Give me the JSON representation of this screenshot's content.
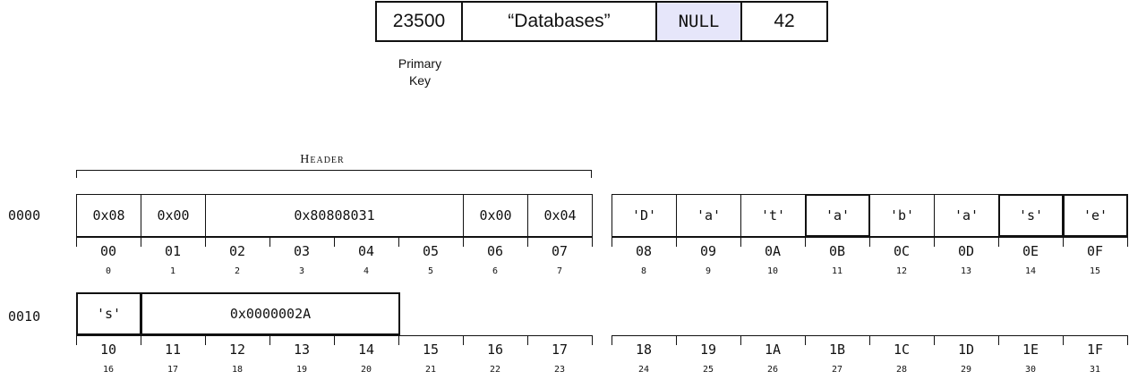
{
  "record": {
    "fields": [
      "23500",
      "“Databases”",
      "NULL",
      "42"
    ],
    "null_fill": "#e6e6fa",
    "primary_key_line1": "Primary",
    "primary_key_line2": "Key"
  },
  "memory": {
    "header_label": "Header",
    "rows": [
      {
        "address": "0000",
        "cells": [
          "0x08",
          "0x00",
          "0x80808031",
          "0x00",
          "0x04",
          "'D'",
          "'a'",
          "'t'",
          "'a'",
          "'b'",
          "'a'",
          "'s'",
          "'e'"
        ],
        "hex_offsets": [
          "00",
          "01",
          "02",
          "03",
          "04",
          "05",
          "06",
          "07",
          "08",
          "09",
          "0A",
          "0B",
          "0C",
          "0D",
          "0E",
          "0F"
        ],
        "dec_offsets": [
          "0",
          "1",
          "2",
          "3",
          "4",
          "5",
          "6",
          "7",
          "8",
          "9",
          "10",
          "11",
          "12",
          "13",
          "14",
          "15"
        ]
      },
      {
        "address": "0010",
        "cells": [
          "'s'",
          "0x0000002A"
        ],
        "hex_offsets": [
          "10",
          "11",
          "12",
          "13",
          "14",
          "15",
          "16",
          "17",
          "18",
          "19",
          "1A",
          "1B",
          "1C",
          "1D",
          "1E",
          "1F"
        ],
        "dec_offsets": [
          "16",
          "17",
          "18",
          "19",
          "20",
          "21",
          "22",
          "23",
          "24",
          "25",
          "26",
          "27",
          "28",
          "29",
          "30",
          "31"
        ]
      }
    ]
  }
}
